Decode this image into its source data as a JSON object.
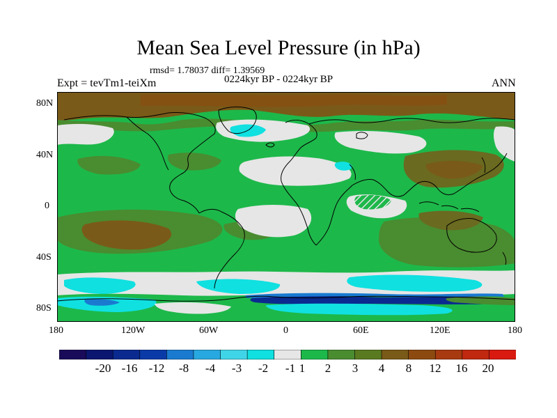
{
  "title": "Mean Sea Level Pressure (in hPa)",
  "stats": "rmsd= 1.78037 diff= 1.39569",
  "subtitle": "0224kyr BP - 0224kyr BP",
  "left_label": "Expt = tevTm1-teiXm",
  "right_label": "ANN",
  "lat_labels": [
    "80N",
    "40N",
    "0",
    "40S",
    "80S"
  ],
  "lon_labels": [
    "180",
    "120W",
    "60W",
    "0",
    "60E",
    "120E",
    "180"
  ],
  "legend": {
    "labels": [
      "-20",
      "-16",
      "-12",
      "-8",
      "-4",
      "-3",
      "-2",
      "-1",
      "1",
      "2",
      "3",
      "4",
      "8",
      "12",
      "16",
      "20"
    ],
    "colors": [
      "#1a0a5a",
      "#0a1670",
      "#0a2a90",
      "#0a3aa8",
      "#1a7ad0",
      "#28a8e0",
      "#40d4e8",
      "#10e0e0",
      "#e6e6e6",
      "#1db84a",
      "#4a8c30",
      "#5a7a20",
      "#7a5a18",
      "#8c4a10",
      "#a83a10",
      "#c02810",
      "#d81a10"
    ]
  },
  "colors": {
    "grey": "#e6e6e6",
    "green": "#1db84a",
    "olive": "#4a8c30",
    "dark_olive": "#6a6a20",
    "brown": "#7a5a18",
    "cyan": "#10e0e0",
    "blue": "#1a7ad0",
    "navy": "#0a2a90"
  }
}
